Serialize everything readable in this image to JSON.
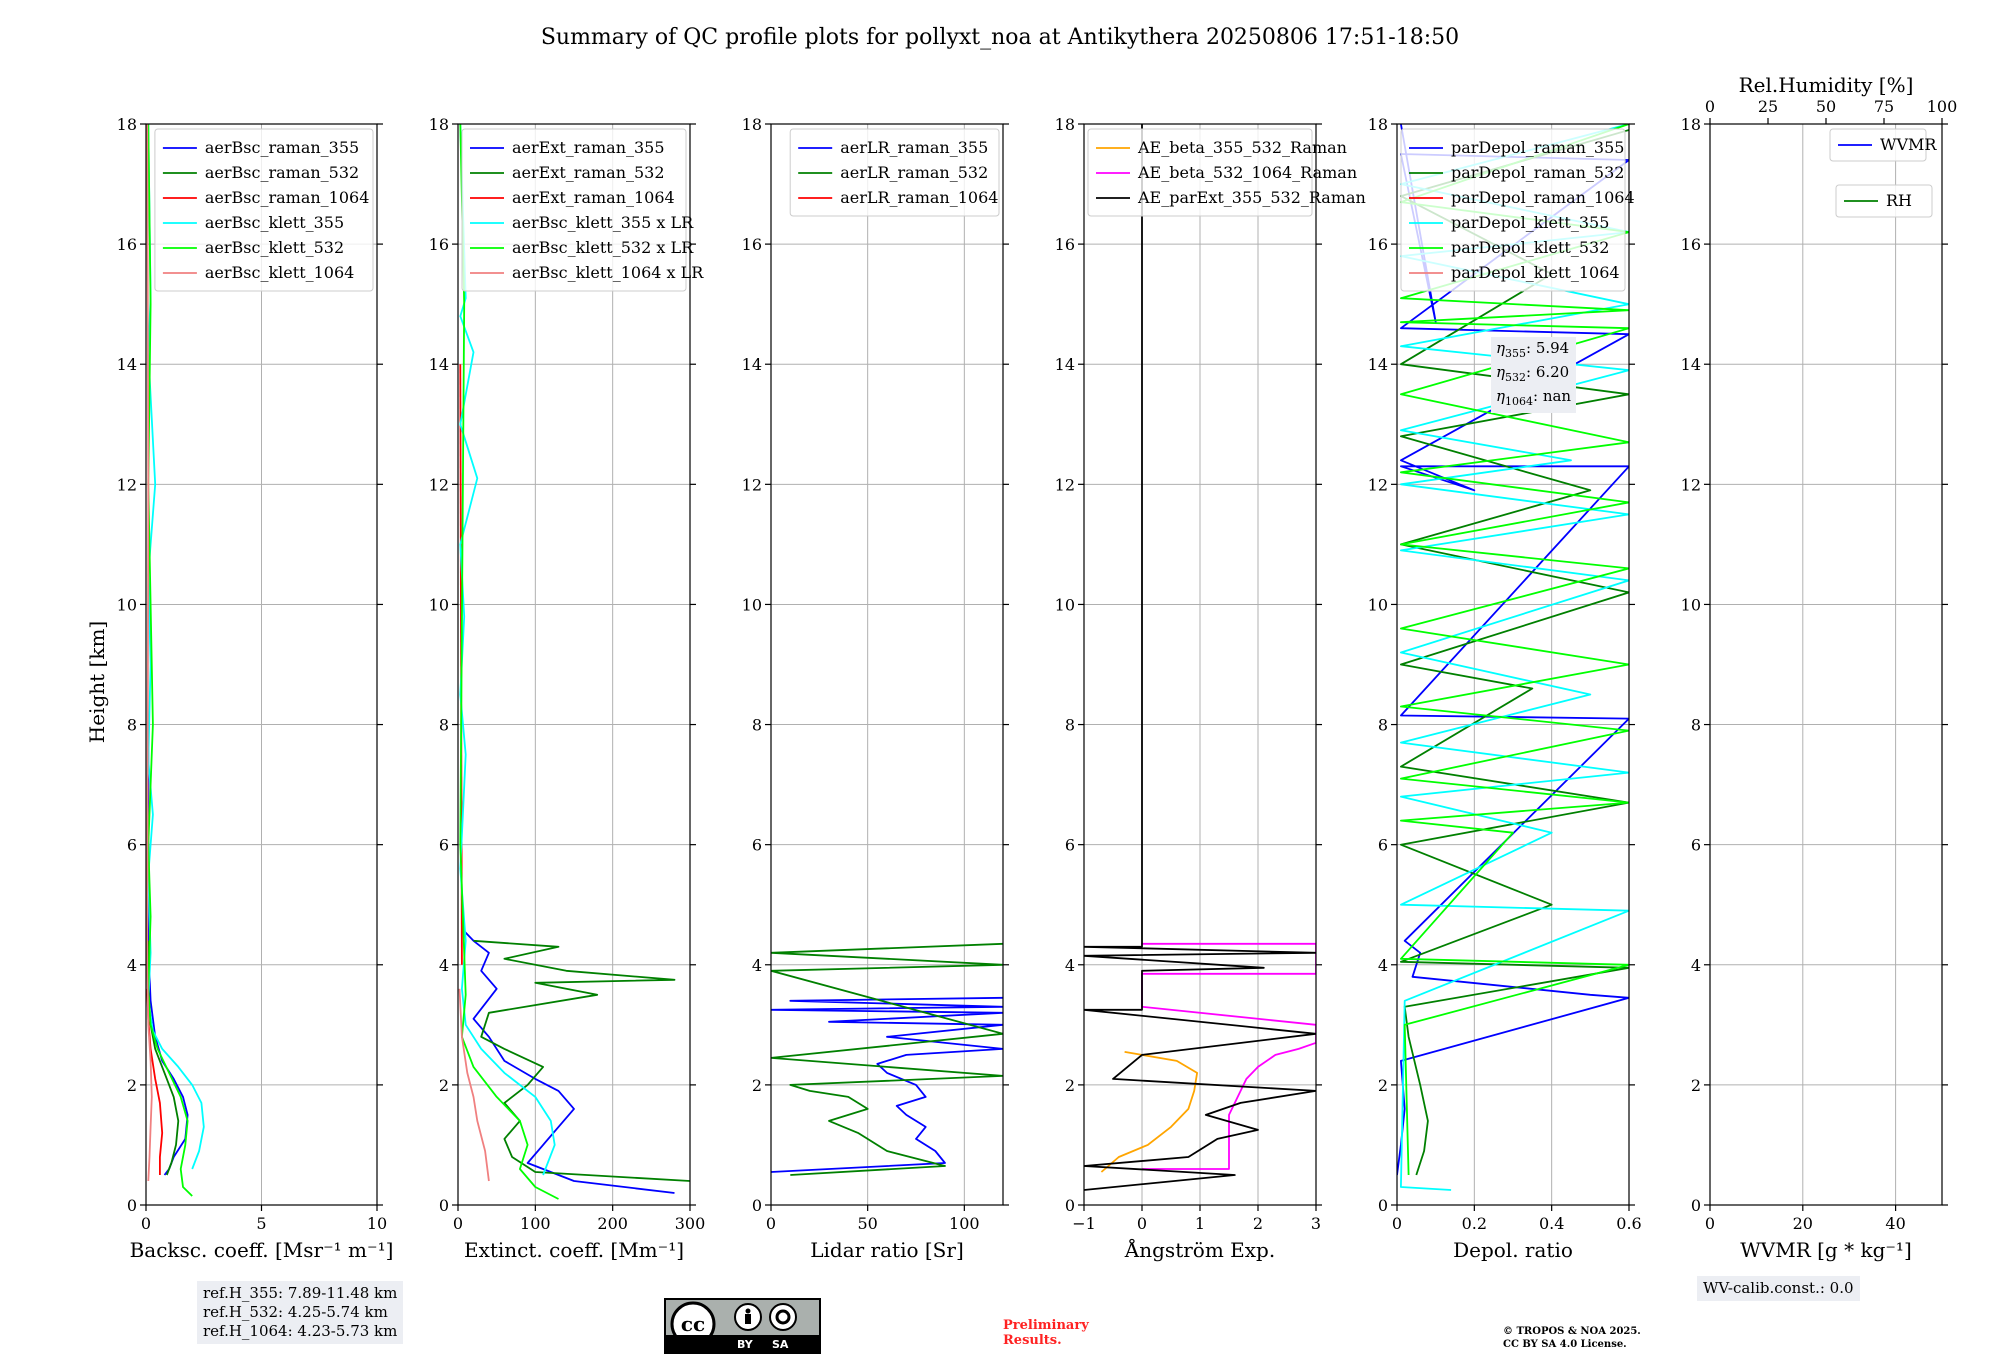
{
  "title": "Summary of QC profile plots for pollyxt_noa at Antikythera 20250806 17:51-18:50",
  "ylabel": "Height [km]",
  "chart_data": [
    {
      "type": "line",
      "name": "backscatter",
      "xlabel": "Backsc. coeff. [Msr⁻¹ m⁻¹]",
      "xlim": [
        0,
        10
      ],
      "xticks": [
        0,
        5,
        10
      ],
      "ylim": [
        0,
        18
      ],
      "yticks": [
        0,
        2,
        4,
        6,
        8,
        10,
        12,
        14,
        16,
        18
      ],
      "legend": "top-right",
      "series": [
        {
          "name": "aerBsc_raman_355",
          "color": "#0000ff",
          "x": [
            0.8,
            1.0,
            1.2,
            1.7,
            1.8,
            1.6,
            1.2,
            0.7,
            0.4,
            0.2,
            0.1,
            0.1
          ],
          "y": [
            0.5,
            0.6,
            0.8,
            1.1,
            1.5,
            1.8,
            2.1,
            2.4,
            2.8,
            3.4,
            4.3,
            8.0
          ]
        },
        {
          "name": "aerBsc_raman_532",
          "color": "#008000",
          "x": [
            0.9,
            1.1,
            1.3,
            1.4,
            1.2,
            0.8,
            0.4,
            0.2,
            0.1,
            0.1
          ],
          "y": [
            0.5,
            0.7,
            1.0,
            1.4,
            1.8,
            2.2,
            2.6,
            3.0,
            3.6,
            4.4
          ]
        },
        {
          "name": "aerBsc_raman_1064",
          "color": "#ff0000",
          "x": [
            0.6,
            0.6,
            0.7,
            0.6,
            0.4,
            0.2,
            0.1,
            0.05
          ],
          "y": [
            0.5,
            0.8,
            1.2,
            1.7,
            2.1,
            2.6,
            3.1,
            3.6
          ]
        },
        {
          "name": "aerBsc_klett_355",
          "color": "#00ffff",
          "x": [
            2.0,
            2.3,
            2.5,
            2.4,
            2.0,
            1.4,
            0.7,
            0.3,
            0.1,
            0.2,
            0.1,
            0.3,
            0.1,
            0.2,
            0.1,
            0.4,
            0.1,
            0.2,
            0.1
          ],
          "y": [
            0.6,
            0.9,
            1.3,
            1.7,
            2.0,
            2.3,
            2.6,
            2.9,
            3.4,
            4.2,
            5.5,
            6.5,
            7.4,
            9.0,
            10.5,
            12.0,
            14.2,
            15.1,
            18.0
          ]
        },
        {
          "name": "aerBsc_klett_532",
          "color": "#00ff00",
          "x": [
            2.0,
            1.6,
            1.5,
            1.7,
            1.8,
            1.5,
            1.0,
            0.5,
            0.2,
            0.1,
            0.2,
            0.1,
            0.3,
            0.1,
            0.2,
            0.1
          ],
          "y": [
            0.15,
            0.3,
            0.6,
            1.0,
            1.4,
            1.8,
            2.2,
            2.6,
            3.0,
            3.6,
            4.8,
            6.0,
            8.0,
            12.0,
            15.0,
            18.0
          ]
        },
        {
          "name": "aerBsc_klett_1064",
          "color": "#f08080",
          "x": [
            0.1,
            0.15,
            0.2,
            0.25,
            0.2,
            0.1,
            0.05,
            0.1,
            0.05
          ],
          "y": [
            0.4,
            0.8,
            1.3,
            1.8,
            2.4,
            3.0,
            4.0,
            12.0,
            18.0
          ]
        }
      ]
    },
    {
      "type": "line",
      "name": "extinction",
      "xlabel": "Extinct. coeff. [Mm⁻¹]",
      "xlim": [
        0,
        300
      ],
      "xticks": [
        0,
        100,
        200,
        300
      ],
      "ylim": [
        0,
        18
      ],
      "yticks": [
        0,
        2,
        4,
        6,
        8,
        10,
        12,
        14,
        16,
        18
      ],
      "legend": "top-right",
      "series": [
        {
          "name": "aerExt_raman_355",
          "color": "#0000ff",
          "x": [
            280,
            150,
            90,
            110,
            130,
            150,
            130,
            100,
            60,
            40,
            20,
            50,
            30,
            40,
            20,
            5
          ],
          "y": [
            0.2,
            0.4,
            0.7,
            1.0,
            1.3,
            1.6,
            1.9,
            2.1,
            2.4,
            2.8,
            3.1,
            3.6,
            3.9,
            4.2,
            4.4,
            4.6
          ]
        },
        {
          "name": "aerExt_raman_532",
          "color": "#008000",
          "x": [
            300,
            100,
            70,
            60,
            80,
            60,
            90,
            110,
            60,
            30,
            40,
            180,
            100,
            280,
            140,
            60,
            130,
            20
          ],
          "y": [
            0.4,
            0.55,
            0.8,
            1.1,
            1.4,
            1.7,
            2.0,
            2.3,
            2.6,
            2.8,
            3.2,
            3.5,
            3.7,
            3.75,
            3.9,
            4.1,
            4.3,
            4.4
          ]
        },
        {
          "name": "aerExt_raman_1064",
          "color": "#ff0000",
          "x": [
            5,
            3
          ],
          "y": [
            4.0,
            14.0
          ]
        },
        {
          "name": "aerBsc_klett_355 x LR",
          "color": "#00ffff",
          "x": [
            110,
            125,
            120,
            100,
            60,
            30,
            10,
            5,
            10,
            3,
            10,
            3,
            8,
            3,
            25,
            3,
            20,
            3,
            10,
            3
          ],
          "y": [
            0.5,
            1.0,
            1.4,
            1.8,
            2.2,
            2.6,
            3.0,
            3.6,
            4.4,
            5.6,
            7.5,
            8.5,
            9.8,
            11.0,
            12.1,
            13.0,
            14.2,
            14.8,
            15.1,
            18.0
          ]
        },
        {
          "name": "aerBsc_klett_532 x LR",
          "color": "#00ff00",
          "x": [
            130,
            100,
            80,
            90,
            80,
            50,
            20,
            5,
            10,
            3,
            8,
            3
          ],
          "y": [
            0.1,
            0.3,
            0.6,
            1.0,
            1.4,
            1.8,
            2.3,
            2.8,
            3.5,
            6.0,
            15.0,
            18.0
          ]
        },
        {
          "name": "aerBsc_klett_1064 x LR",
          "color": "#f08080",
          "x": [
            40,
            35,
            25,
            20,
            12,
            5,
            2
          ],
          "y": [
            0.4,
            0.9,
            1.4,
            1.8,
            2.2,
            2.8,
            3.6
          ]
        }
      ]
    },
    {
      "type": "line",
      "name": "lidar_ratio",
      "xlabel": "Lidar ratio [Sr]",
      "xlim": [
        0,
        120
      ],
      "xticks": [
        0,
        50,
        100
      ],
      "ylim": [
        0,
        18
      ],
      "yticks": [
        0,
        2,
        4,
        6,
        8,
        10,
        12,
        14,
        16,
        18
      ],
      "legend": "top-right",
      "series": [
        {
          "name": "aerLR_raman_355",
          "color": "#0000ff",
          "x": [
            0,
            90,
            85,
            75,
            80,
            70,
            65,
            80,
            75,
            60,
            55,
            70,
            120,
            60,
            120,
            30,
            120,
            0,
            120,
            10,
            120
          ],
          "y": [
            0.55,
            0.7,
            0.9,
            1.1,
            1.3,
            1.5,
            1.65,
            1.8,
            2.0,
            2.2,
            2.35,
            2.5,
            2.6,
            2.8,
            3.0,
            3.05,
            3.2,
            3.25,
            3.3,
            3.4,
            3.45
          ]
        },
        {
          "name": "aerLR_raman_532",
          "color": "#008000",
          "x": [
            10,
            90,
            60,
            45,
            30,
            50,
            40,
            20,
            10,
            120,
            0,
            120,
            0,
            120,
            0,
            120
          ],
          "y": [
            0.5,
            0.65,
            0.9,
            1.2,
            1.4,
            1.6,
            1.8,
            1.9,
            2.0,
            2.15,
            2.45,
            2.85,
            3.9,
            4.0,
            4.2,
            4.35
          ]
        },
        {
          "name": "aerLR_raman_1064",
          "color": "#ff0000",
          "x": [],
          "y": []
        }
      ]
    },
    {
      "type": "line",
      "name": "angstrom",
      "xlabel": "Ångström Exp.",
      "xlim": [
        -1,
        3
      ],
      "xticks": [
        -1,
        0,
        1,
        2,
        3
      ],
      "ylim": [
        0,
        18
      ],
      "yticks": [
        0,
        2,
        4,
        6,
        8,
        10,
        12,
        14,
        16,
        18
      ],
      "legend": "top-right",
      "series": [
        {
          "name": "AE_beta_355_532_Raman",
          "color": "#ffa500",
          "x": [
            -0.7,
            -0.4,
            0.1,
            0.5,
            0.8,
            0.9,
            0.95,
            0.6,
            0.0,
            -0.3
          ],
          "y": [
            0.55,
            0.8,
            1.0,
            1.3,
            1.6,
            1.9,
            2.2,
            2.4,
            2.5,
            2.55
          ]
        },
        {
          "name": "AE_beta_532_1064_Raman",
          "color": "#ff00ff",
          "x": [
            0.0,
            1.5,
            1.5,
            1.7,
            1.8,
            2.0,
            2.3,
            2.7,
            3.0,
            3.0,
            0.0,
            0.0,
            3.0,
            3.0,
            0.0,
            0.0,
            3.0
          ],
          "y": [
            0.6,
            0.6,
            1.5,
            1.9,
            2.1,
            2.3,
            2.5,
            2.6,
            2.7,
            3.0,
            3.3,
            3.85,
            3.85,
            4.35,
            4.35,
            4.35,
            4.35
          ]
        },
        {
          "name": "AE_parExt_355_532_Raman",
          "color": "#000000",
          "x": [
            -1.0,
            1.6,
            -1.0,
            0.8,
            1.3,
            2.0,
            1.1,
            1.7,
            3.0,
            -0.5,
            0.0,
            3.0,
            -1.0,
            0.0,
            0.0,
            2.1,
            -1.0,
            3.0,
            -1.0,
            0.0,
            0.0
          ],
          "y": [
            0.25,
            0.5,
            0.65,
            0.8,
            1.1,
            1.25,
            1.5,
            1.7,
            1.9,
            2.1,
            2.5,
            2.85,
            3.25,
            3.25,
            3.9,
            3.95,
            4.15,
            4.2,
            4.3,
            4.3,
            18.0
          ]
        }
      ]
    },
    {
      "type": "line",
      "name": "depolarization",
      "xlabel": "Depol. ratio",
      "xlim": [
        0.0,
        0.6
      ],
      "xticks": [
        0.0,
        0.2,
        0.4,
        0.6
      ],
      "ylim": [
        0,
        18
      ],
      "yticks": [
        0,
        2,
        4,
        6,
        8,
        10,
        12,
        14,
        16,
        18
      ],
      "legend": "top-left",
      "series": [
        {
          "name": "parDepol_raman_355",
          "color": "#0000ff",
          "x": [
            0.0,
            0.01,
            0.02,
            0.01,
            0.6,
            0.5,
            0.04,
            0.06,
            0.02,
            0.6,
            0.01,
            0.6,
            0.01,
            0.2,
            0.01,
            0.6,
            0.01,
            0.6,
            0.01,
            0.1,
            0.01
          ],
          "y": [
            0.5,
            1.0,
            1.6,
            2.4,
            3.45,
            3.5,
            3.8,
            4.2,
            4.4,
            8.1,
            8.15,
            12.3,
            12.3,
            11.9,
            12.4,
            14.5,
            14.6,
            17.4,
            17.5,
            14.7,
            18.0
          ]
        },
        {
          "name": "parDepol_raman_532",
          "color": "#008000",
          "x": [
            0.05,
            0.07,
            0.08,
            0.06,
            0.03,
            0.02,
            0.6,
            0.01,
            0.4,
            0.01,
            0.6,
            0.01,
            0.35,
            0.01,
            0.6,
            0.01,
            0.5,
            0.01,
            0.6,
            0.01,
            0.4,
            0.01,
            0.6
          ],
          "y": [
            0.5,
            0.9,
            1.4,
            2.0,
            2.8,
            3.3,
            3.95,
            4.05,
            5.0,
            6.0,
            6.7,
            7.3,
            8.6,
            9.0,
            10.2,
            11.0,
            11.9,
            12.8,
            13.5,
            14.0,
            15.5,
            16.8,
            17.9
          ]
        },
        {
          "name": "parDepol_raman_1064",
          "color": "#ff0000",
          "x": [],
          "y": []
        },
        {
          "name": "parDepol_klett_355",
          "color": "#00ffff",
          "x": [
            0.14,
            0.01,
            0.02,
            0.6,
            0.01,
            0.4,
            0.01,
            0.6,
            0.01,
            0.5,
            0.01,
            0.6,
            0.01,
            0.6,
            0.01,
            0.45,
            0.01,
            0.6,
            0.01,
            0.6,
            0.01,
            0.6,
            0.01,
            0.6
          ],
          "y": [
            0.25,
            0.3,
            3.4,
            4.9,
            5.0,
            6.2,
            6.8,
            7.2,
            7.7,
            8.5,
            9.2,
            10.4,
            10.9,
            11.5,
            12.0,
            12.4,
            12.9,
            13.9,
            14.3,
            15.0,
            15.8,
            16.2,
            17.0,
            18.0
          ]
        },
        {
          "name": "parDepol_klett_532",
          "color": "#00ff00",
          "x": [
            0.03,
            0.02,
            0.6,
            0.01,
            0.3,
            0.01,
            0.6,
            0.01,
            0.6,
            0.01,
            0.6,
            0.01,
            0.6,
            0.01,
            0.6,
            0.01,
            0.6,
            0.01,
            0.6,
            0.01,
            0.6,
            0.01,
            0.6,
            0.01,
            0.6
          ],
          "y": [
            0.5,
            3.0,
            4.0,
            4.1,
            6.2,
            6.4,
            6.7,
            7.1,
            7.9,
            8.3,
            9.0,
            9.6,
            10.6,
            11.0,
            11.7,
            12.2,
            12.7,
            13.5,
            14.6,
            14.7,
            14.9,
            15.1,
            16.2,
            16.7,
            18.0
          ]
        },
        {
          "name": "parDepol_klett_1064",
          "color": "#f08080",
          "x": [],
          "y": []
        }
      ]
    },
    {
      "type": "line",
      "name": "water_vapor",
      "xlabel": "WVMR [g * kg⁻¹]",
      "x2label": "Rel.Humidity [%]",
      "xlim": [
        0,
        50
      ],
      "xticks": [
        0,
        20,
        40
      ],
      "x2lim": [
        0,
        100
      ],
      "x2ticks": [
        0,
        25,
        50,
        75,
        100
      ],
      "ylim": [
        0,
        18
      ],
      "yticks": [
        0,
        2,
        4,
        6,
        8,
        10,
        12,
        14,
        16,
        18
      ],
      "legend": "top-right",
      "series": [
        {
          "name": "WVMR",
          "color": "#0000ff",
          "x": [],
          "y": []
        },
        {
          "name": "RH",
          "color": "#008000",
          "x": [],
          "y": []
        }
      ]
    }
  ],
  "annotations": {
    "ref_heights": [
      "ref.H_355: 7.89-11.48 km",
      "ref.H_532: 4.25-5.74 km",
      "ref.H_1064: 4.23-5.73 km"
    ],
    "eta": [
      {
        "sub": "355",
        "value": ": 5.94"
      },
      {
        "sub": "532",
        "value": ": 6.20"
      },
      {
        "sub": "1064",
        "value": ": nan"
      }
    ],
    "eta_symbol": "η",
    "wv_calib": "WV-calib.const.: 0.0",
    "cc_by": "BY",
    "cc_sa": "SA",
    "cc_circle": "cc",
    "preliminary": [
      "Preliminary",
      "Results."
    ],
    "copyright": [
      "© TROPOS & NOA 2025.",
      "CC BY SA 4.0 License."
    ]
  }
}
